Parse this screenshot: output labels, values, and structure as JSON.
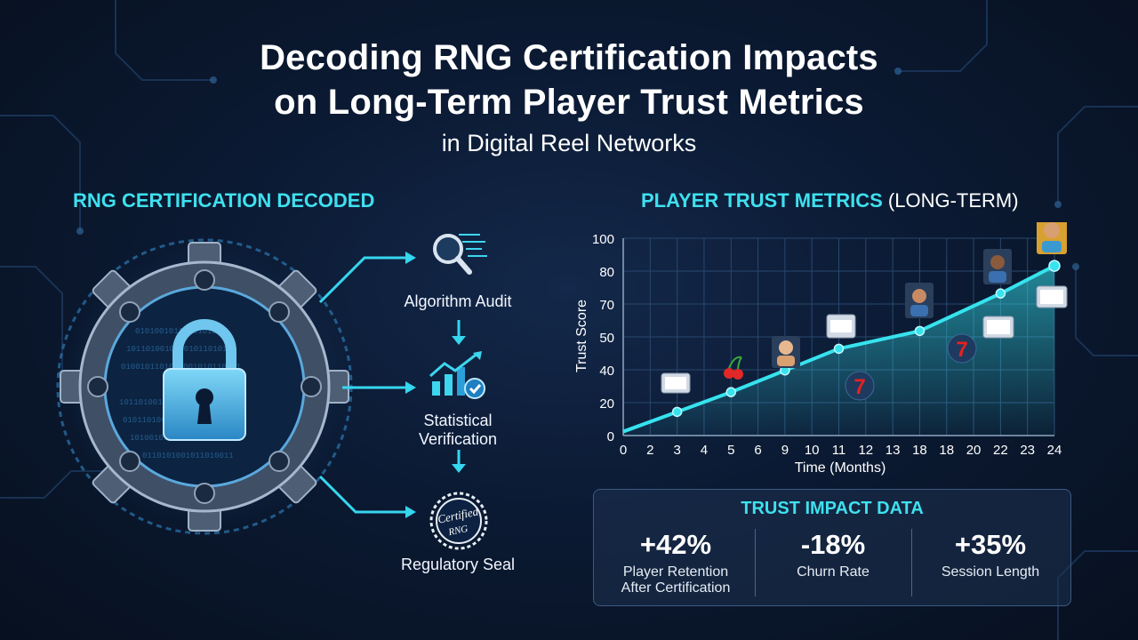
{
  "header": {
    "title_line1": "Decoding RNG Certification Impacts",
    "title_line2": "on Long-Term Player Trust Metrics",
    "subtitle": "in Digital Reel Networks"
  },
  "left_panel": {
    "heading": "RNG CERTIFICATION DECODED",
    "steps": [
      {
        "label_line1": "Algorithm Audit",
        "label_line2": "",
        "icon": "magnifier-code-icon"
      },
      {
        "label_line1": "Statistical",
        "label_line2": "Verification",
        "icon": "chart-check-icon"
      },
      {
        "label_line1": "Regulatory Seal",
        "label_line2": "",
        "icon": "certified-seal-icon",
        "seal_text_1": "Certified",
        "seal_text_2": "RNG"
      }
    ]
  },
  "right_panel": {
    "heading_main": "PLAYER TRUST METRICS",
    "heading_suffix": "(LONG-TERM)"
  },
  "chart_data": {
    "type": "area",
    "title": "PLAYER TRUST METRICS (LONG-TERM)",
    "xlabel": "Time (Months)",
    "ylabel": "Trust Score",
    "x_tick_labels": [
      "0",
      "2",
      "3",
      "4",
      "5",
      "6",
      "9",
      "10",
      "11",
      "12",
      "13",
      "18",
      "18",
      "20",
      "22",
      "23",
      "24"
    ],
    "y_ticks": [
      0,
      20,
      40,
      50,
      70,
      80,
      100
    ],
    "ylim": [
      0,
      100
    ],
    "grid": true,
    "series": [
      {
        "x_tick_index": [
          0,
          2,
          4,
          6,
          8,
          11,
          14,
          16
        ],
        "values": [
          2,
          12,
          22,
          33,
          44,
          53,
          72,
          86
        ],
        "color": "#36e3ee"
      }
    ]
  },
  "impact": {
    "title": "TRUST IMPACT DATA",
    "metrics": [
      {
        "value": "+42%",
        "label_line1": "Player Retention",
        "label_line2": "After Certification"
      },
      {
        "value": "-18%",
        "label_line1": "Churn Rate",
        "label_line2": ""
      },
      {
        "value": "+35%",
        "label_line1": "Session Length",
        "label_line2": ""
      }
    ]
  },
  "colors": {
    "accent": "#3fe0ee",
    "background": "#0b1a33",
    "line": "#36e3ee"
  }
}
